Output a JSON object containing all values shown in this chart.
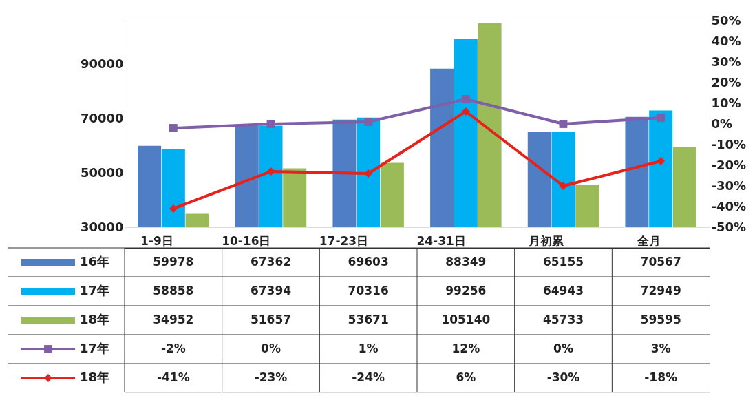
{
  "chart_data": {
    "type": "bar",
    "categories": [
      "1-9日",
      "10-16日",
      "17-23日",
      "24-31日",
      "月初累",
      "全月"
    ],
    "series": [
      {
        "name": "16年",
        "color": "#4f7ec4",
        "values": [
          59978,
          67362,
          69603,
          88349,
          65155,
          70567
        ]
      },
      {
        "name": "17年",
        "color": "#00b0f0",
        "values": [
          58858,
          67394,
          70316,
          99256,
          64943,
          72949
        ]
      },
      {
        "name": "18年",
        "color": "#9bbb59",
        "values": [
          34952,
          51657,
          53671,
          105140,
          45733,
          59595
        ]
      },
      {
        "name": "17年",
        "type": "line",
        "axis": "y2",
        "marker": "square",
        "color": "#7f5fa8",
        "values": [
          -2,
          0,
          1,
          12,
          0,
          3
        ],
        "value_labels": [
          "-2%",
          "0%",
          "1%",
          "12%",
          "0%",
          "3%"
        ]
      },
      {
        "name": "18年",
        "type": "line",
        "axis": "y2",
        "marker": "diamond",
        "color": "#e3231c",
        "values": [
          -41,
          -23,
          -24,
          6,
          -30,
          -18
        ],
        "value_labels": [
          "-41%",
          "-23%",
          "-24%",
          "6%",
          "-30%",
          "-18%"
        ]
      }
    ],
    "ylim": [
      30000,
      106000
    ],
    "yticks": [
      30000,
      50000,
      70000,
      90000
    ],
    "y2lim": [
      -50,
      50
    ],
    "y2ticks": [
      {
        "value": -50,
        "label": "-50%"
      },
      {
        "value": -40,
        "label": "-40%"
      },
      {
        "value": -30,
        "label": "-30%"
      },
      {
        "value": -20,
        "label": "-20%"
      },
      {
        "value": -10,
        "label": "-10%"
      },
      {
        "value": 0,
        "label": "0%"
      },
      {
        "value": 10,
        "label": "10%"
      },
      {
        "value": 20,
        "label": "20%"
      },
      {
        "value": 30,
        "label": "30%"
      },
      {
        "value": 40,
        "label": "40%"
      },
      {
        "value": 50,
        "label": "50%"
      }
    ],
    "data_labels": true,
    "legend": "bottom left",
    "grid": false
  }
}
